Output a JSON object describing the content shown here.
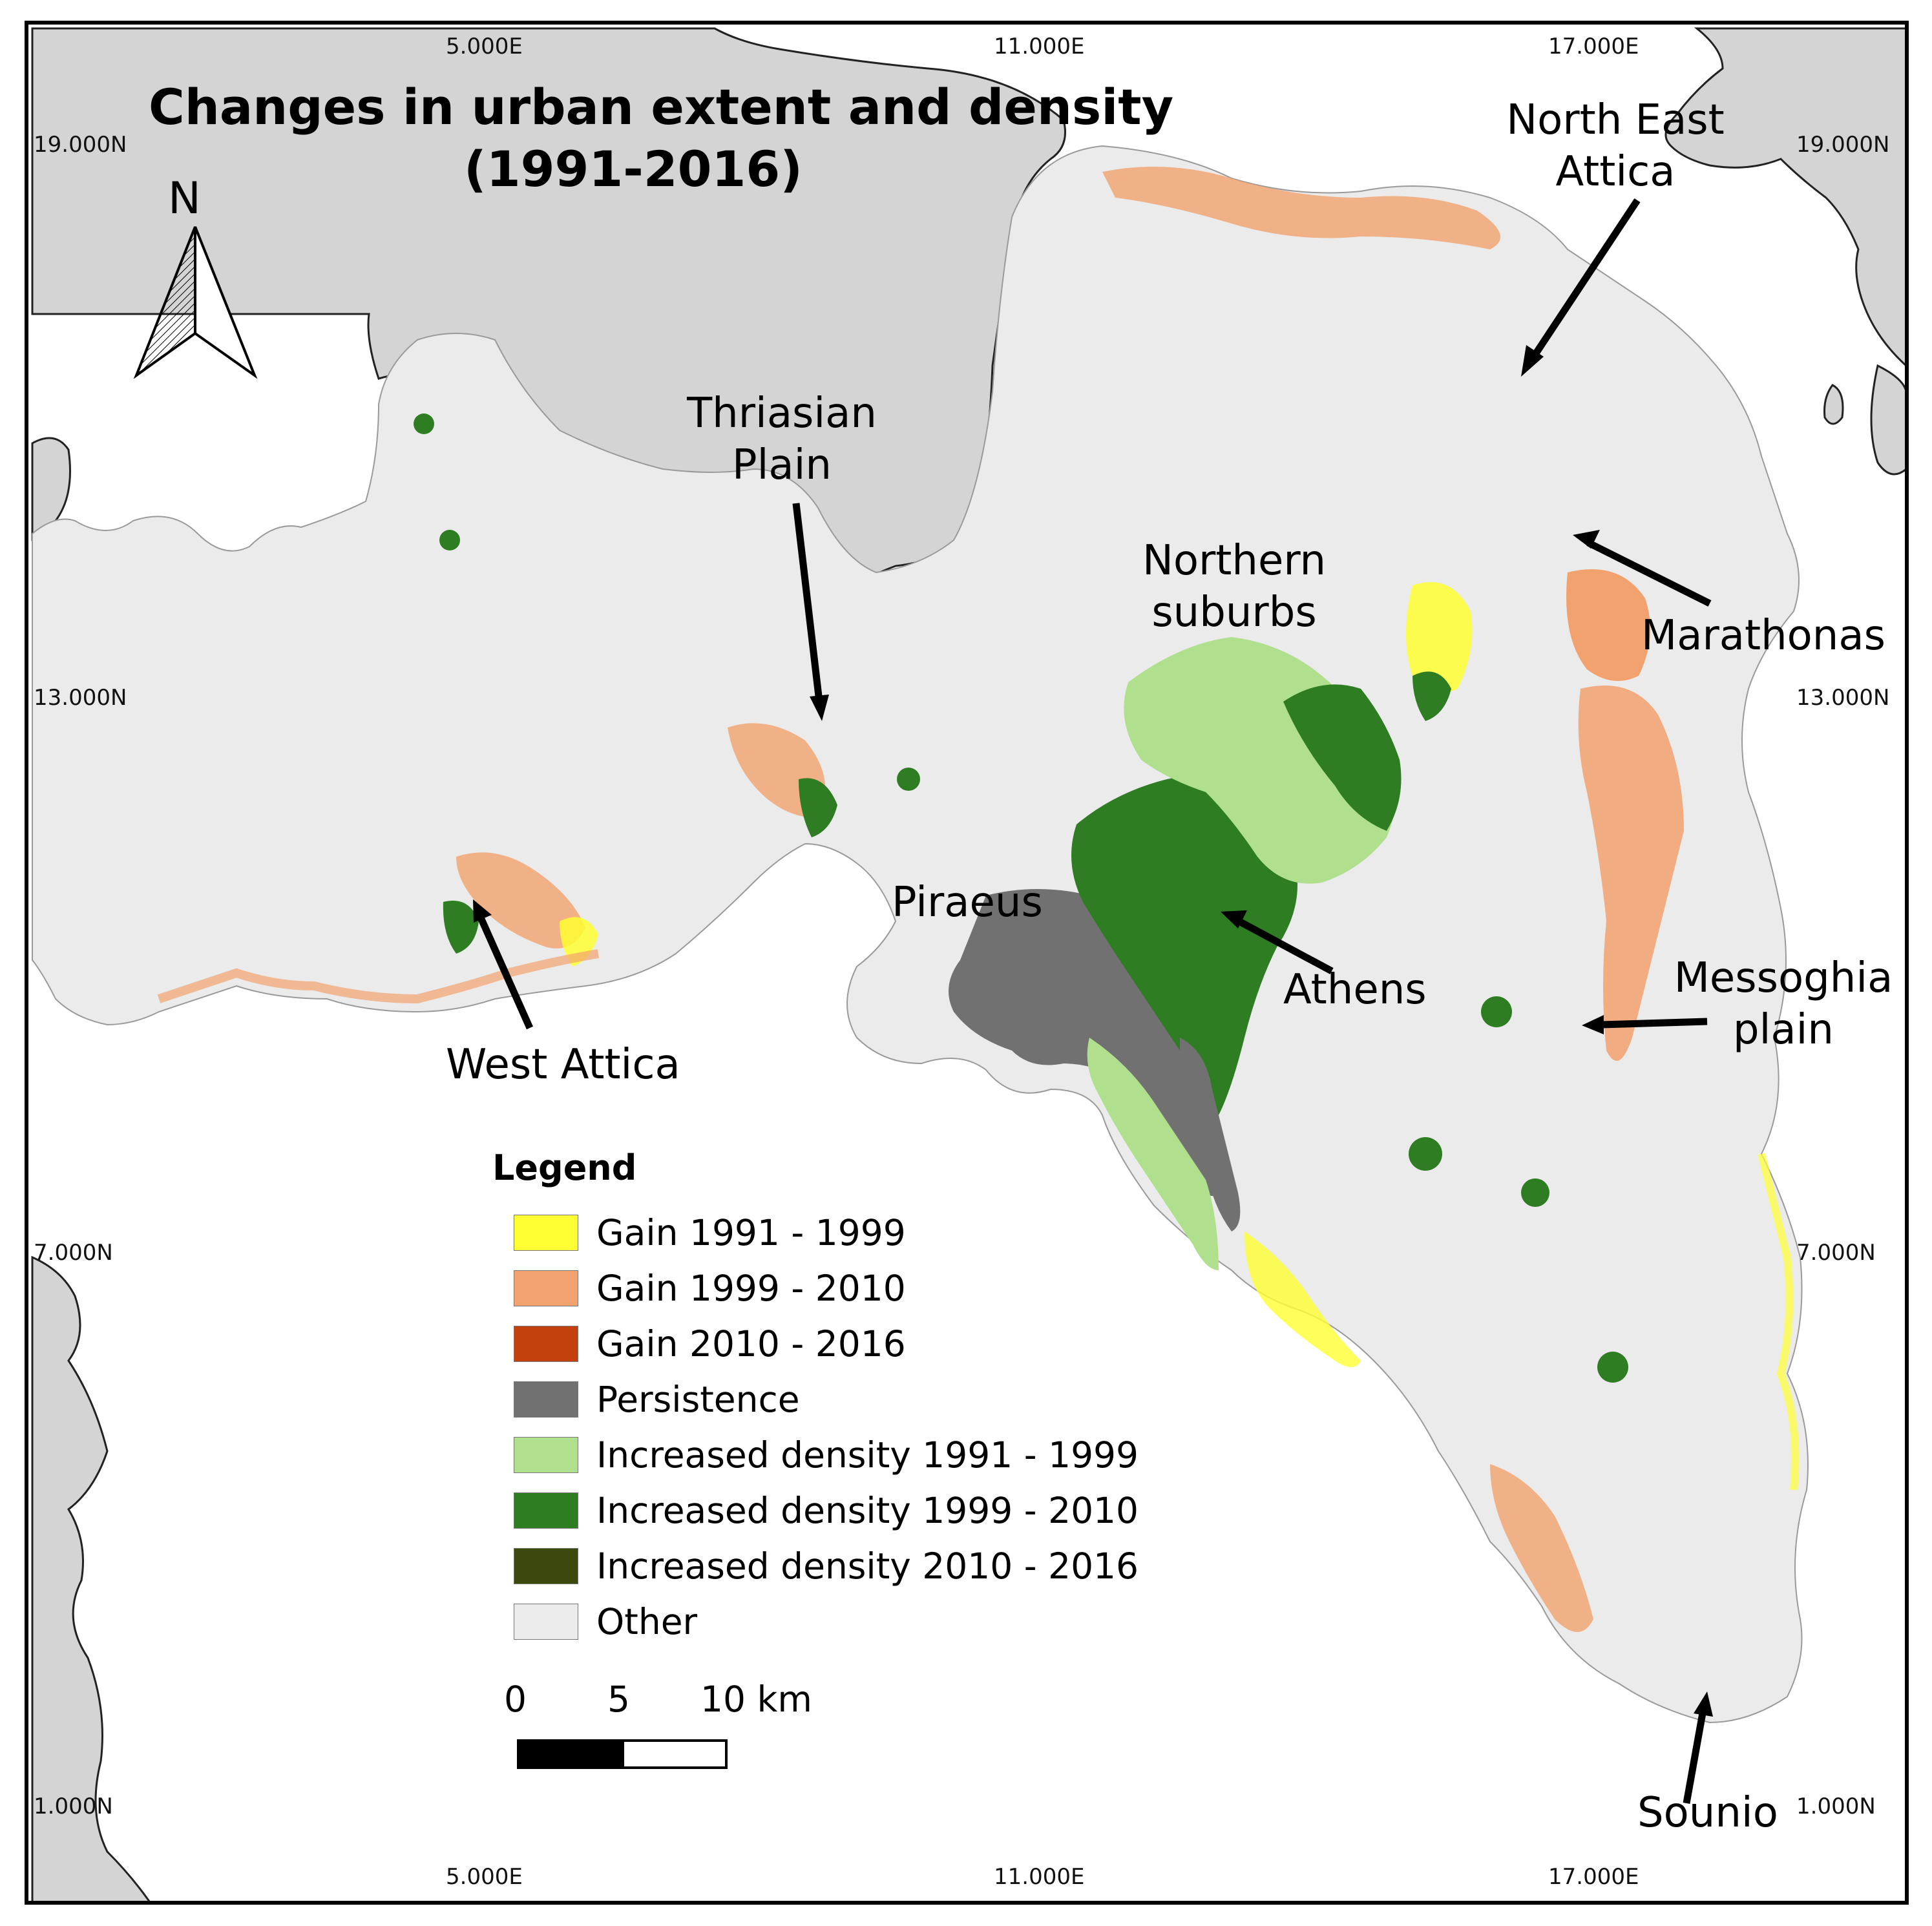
{
  "map": {
    "title_lines": [
      "Changes in urban extent and density",
      "(1991-2016)"
    ],
    "north_label": "N",
    "grid_x_labels": [
      "5.000E",
      "11.000E",
      "17.000E"
    ],
    "grid_y_labels": [
      "19.000N",
      "13.000N",
      "7.000N",
      "1.000N"
    ],
    "places": {
      "north_east_attica": [
        "North East",
        "Attica"
      ],
      "thriasian_plain": [
        "Thriasian",
        "Plain"
      ],
      "northern_suburbs": [
        "Northern",
        "suburbs"
      ],
      "marathonas": "Marathonas",
      "piraeus": "Piraeus",
      "athens": "Athens",
      "messoghia_plain": [
        "Messoghia",
        "plain"
      ],
      "west_attica": "West Attica",
      "sounio": "Sounio"
    },
    "colors": {
      "sea": "#ffffff",
      "neighbouring_land": "#d4d4d4",
      "study_area": "#ebebeb"
    }
  },
  "legend": {
    "title": "Legend",
    "items": [
      {
        "label": "Gain 1991 - 1999",
        "color": "#ffff33"
      },
      {
        "label": "Gain 1999 - 2010",
        "color": "#f2a26e"
      },
      {
        "label": "Gain 2010 - 2016",
        "color": "#c2410c"
      },
      {
        "label": "Persistence",
        "color": "#717171"
      },
      {
        "label": "Increased density 1991 - 1999",
        "color": "#b0df8e"
      },
      {
        "label": "Increased density 1999 - 2010",
        "color": "#2e7d22"
      },
      {
        "label": "Increased density 2010 - 2016",
        "color": "#3b4a0c"
      },
      {
        "label": "Other",
        "color": "#ebebeb"
      }
    ]
  },
  "scale_bar": {
    "ticks": [
      "0",
      "5",
      "10 km"
    ]
  }
}
